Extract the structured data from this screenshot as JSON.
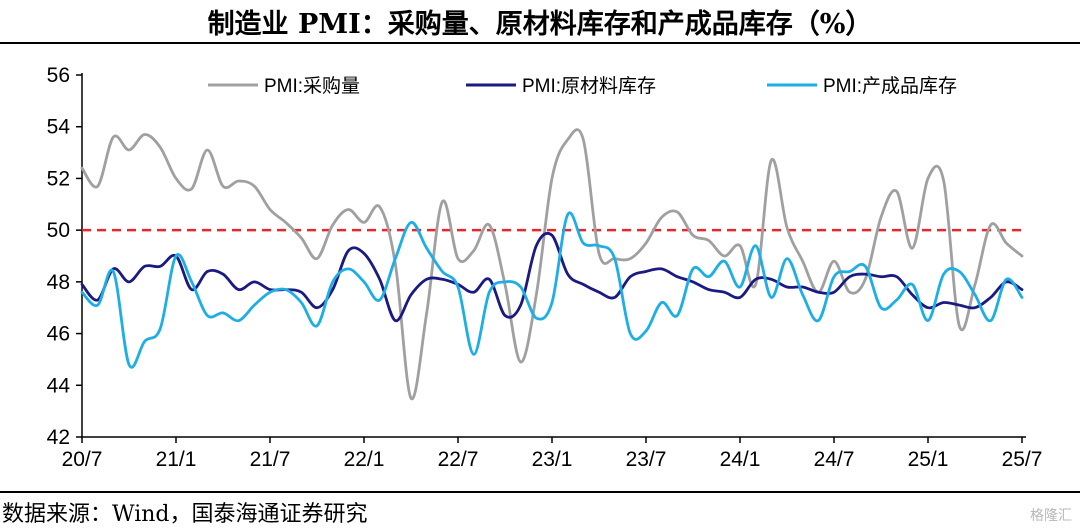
{
  "title": "制造业 PMI：采购量、原材料库存和产成品库存（%）",
  "source": "数据来源：Wind，国泰海通证券研究",
  "watermark": "格隆汇",
  "chart_data": {
    "type": "line",
    "title": "制造业 PMI：采购量、原材料库存和产成品库存（%）",
    "ylim": [
      42,
      56
    ],
    "yticks": [
      42,
      44,
      46,
      48,
      50,
      52,
      54,
      56
    ],
    "x": [
      "2020-07",
      "2020-08",
      "2020-09",
      "2020-10",
      "2020-11",
      "2020-12",
      "2021-01",
      "2021-02",
      "2021-03",
      "2021-04",
      "2021-05",
      "2021-06",
      "2021-07",
      "2021-08",
      "2021-09",
      "2021-10",
      "2021-11",
      "2021-12",
      "2022-01",
      "2022-02",
      "2022-03",
      "2022-04",
      "2022-05",
      "2022-06",
      "2022-07",
      "2022-08",
      "2022-09",
      "2022-10",
      "2022-11",
      "2022-12",
      "2023-01",
      "2023-02",
      "2023-03",
      "2023-04",
      "2023-05",
      "2023-06",
      "2023-07",
      "2023-08",
      "2023-09",
      "2023-10",
      "2023-11",
      "2023-12",
      "2024-01",
      "2024-02",
      "2024-03",
      "2024-04",
      "2024-05",
      "2024-06",
      "2024-07",
      "2024-08",
      "2024-09",
      "2024-10",
      "2024-11",
      "2024-12",
      "2025-01",
      "2025-02",
      "2025-03",
      "2025-04",
      "2025-05",
      "2025-06",
      "2025-07"
    ],
    "xtick_labels": [
      "20/7",
      "21/1",
      "21/7",
      "22/1",
      "22/7",
      "23/1",
      "23/7",
      "24/1",
      "24/7",
      "25/1",
      "25/7"
    ],
    "reference_line": {
      "value": 50,
      "color": "#e8262b",
      "style": "dashed"
    },
    "legend_position": "top",
    "grid": false,
    "series": [
      {
        "name": "PMI:采购量",
        "color": "#a0a0a0",
        "values": [
          52.4,
          51.7,
          53.6,
          53.1,
          53.7,
          53.2,
          52.0,
          51.6,
          53.1,
          51.7,
          51.9,
          51.7,
          50.8,
          50.3,
          49.7,
          48.9,
          50.2,
          50.8,
          50.3,
          50.9,
          48.7,
          43.5,
          46.8,
          51.1,
          48.9,
          49.2,
          50.2,
          47.9,
          44.9,
          47.5,
          52.0,
          53.5,
          53.5,
          49.1,
          48.9,
          48.9,
          49.5,
          50.5,
          50.7,
          49.8,
          49.6,
          49.0,
          49.4,
          47.9,
          52.7,
          50.1,
          48.8,
          47.6,
          48.8,
          47.6,
          48.1,
          50.5,
          51.5,
          49.3,
          52.0,
          51.9,
          46.3,
          47.9,
          50.2,
          49.5,
          49.0
        ]
      },
      {
        "name": "PMI:原材料库存",
        "color": "#1a1a82",
        "values": [
          47.9,
          47.3,
          48.5,
          48.0,
          48.6,
          48.6,
          49.0,
          47.7,
          48.4,
          48.3,
          47.7,
          48.0,
          47.7,
          47.7,
          47.6,
          47.0,
          47.7,
          49.2,
          49.1,
          48.1,
          46.5,
          47.5,
          48.1,
          48.1,
          47.9,
          47.6,
          48.1,
          46.7,
          47.1,
          49.4,
          49.8,
          48.3,
          47.9,
          47.6,
          47.4,
          48.2,
          48.4,
          48.5,
          48.2,
          48.0,
          47.7,
          47.6,
          47.4,
          48.1,
          48.1,
          47.8,
          47.8,
          47.6,
          47.6,
          48.2,
          48.3,
          48.2,
          48.2,
          47.5,
          47.0,
          47.2,
          47.1,
          47.0,
          47.4,
          48.0,
          47.7
        ]
      },
      {
        "name": "PMI:产成品库存",
        "color": "#1eaee6",
        "values": [
          47.6,
          47.1,
          48.4,
          44.8,
          45.7,
          46.2,
          49.0,
          48.0,
          46.7,
          46.8,
          46.5,
          47.1,
          47.6,
          47.7,
          47.2,
          46.3,
          48.0,
          48.5,
          48.0,
          47.3,
          48.9,
          50.3,
          49.3,
          48.4,
          47.8,
          45.2,
          47.6,
          48.0,
          47.8,
          46.6,
          47.2,
          50.6,
          49.5,
          49.4,
          48.9,
          46.0,
          46.1,
          47.2,
          46.7,
          48.5,
          48.2,
          48.8,
          47.8,
          49.4,
          47.4,
          48.9,
          47.5,
          46.5,
          48.2,
          48.4,
          48.6,
          47.0,
          47.3,
          47.9,
          46.5,
          48.3,
          48.4,
          47.5,
          46.5,
          48.1,
          47.4
        ]
      }
    ]
  }
}
